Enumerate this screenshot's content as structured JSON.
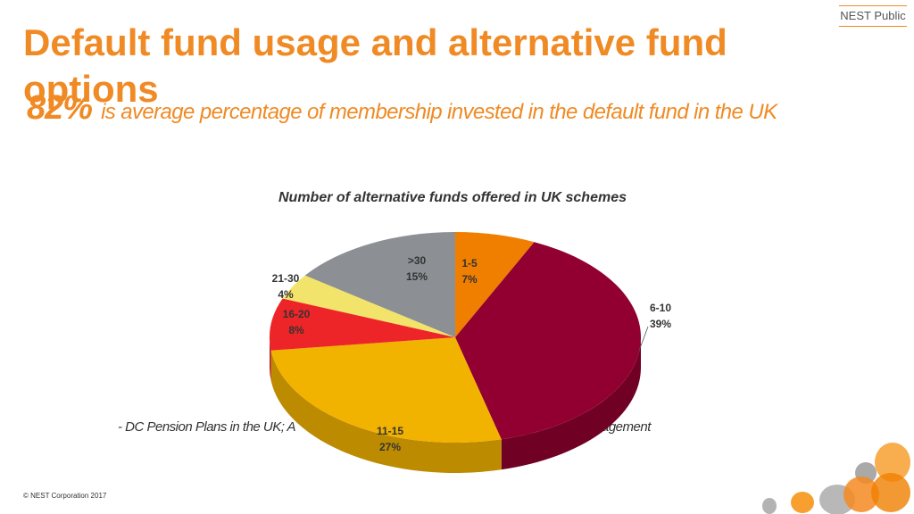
{
  "header": {
    "badge": "NEST Public",
    "title": "Default fund usage and alternative fund options"
  },
  "stat": {
    "value": "82%",
    "text": "is average percentage of membership invested in the default fund in the UK"
  },
  "source_text": "-  DC Pension Plans in the UK; A",
  "source_text_end": "agement",
  "footer": {
    "copyright": "© NEST Corporation 2017"
  },
  "colors": {
    "accent": "#f08a24",
    "slices": [
      "#f07f00",
      "#910030",
      "#f2b200",
      "#ee2528",
      "#f2e46a",
      "#8c8f93"
    ]
  },
  "chart_data": {
    "type": "pie",
    "title": "Number of alternative funds offered in UK schemes",
    "categories": [
      "1-5",
      "6-10",
      "11-15",
      "16-20",
      "21-30",
      ">30"
    ],
    "values": [
      7,
      39,
      27,
      8,
      4,
      15
    ],
    "value_labels": [
      "7%",
      "39%",
      "27%",
      "8%",
      "4%",
      "15%"
    ],
    "three_d": true
  }
}
